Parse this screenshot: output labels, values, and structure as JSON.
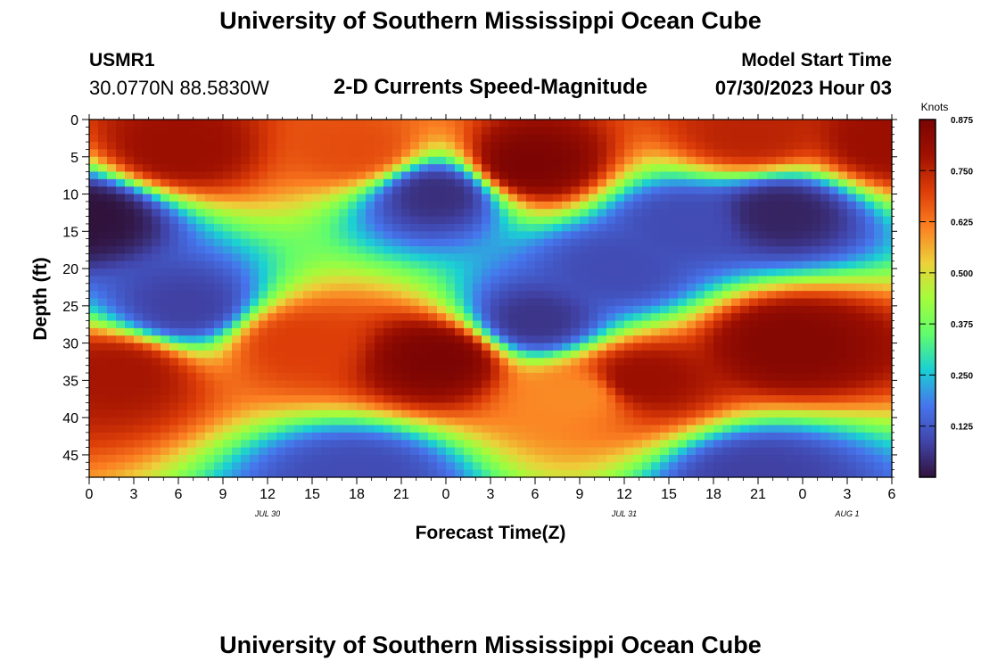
{
  "header": {
    "title": "University of Southern Mississippi Ocean Cube",
    "station": "USMR1",
    "coords": "30.0770N  88.5830W",
    "subtitle": "2-D Currents Speed-Magnitude",
    "model_start_label": "Model Start Time",
    "model_start_value": "07/30/2023 Hour 03"
  },
  "footer": {
    "title": "University of Southern Mississippi Ocean Cube"
  },
  "chart_data": {
    "type": "heatmap",
    "xlabel": "Forecast Time(Z)",
    "ylabel": "Depth (ft)",
    "x_tick_labels": [
      "0",
      "3",
      "6",
      "9",
      "12",
      "15",
      "18",
      "21",
      "0",
      "3",
      "6",
      "9",
      "12",
      "15",
      "18",
      "21",
      "0",
      "3",
      "6"
    ],
    "date_labels": [
      {
        "text": "JUL 30",
        "at_tick": 4
      },
      {
        "text": "JUL 31",
        "at_tick": 12
      },
      {
        "text": "AUG 1",
        "at_tick": 17
      }
    ],
    "y_ticks": [
      0,
      5,
      10,
      15,
      20,
      25,
      30,
      35,
      40,
      45
    ],
    "ylim": [
      0,
      48
    ],
    "xlim_hours": [
      0,
      54
    ],
    "colorbar": {
      "unit": "Knots",
      "ticks": [
        "0.875",
        "0.750",
        "0.625",
        "0.500",
        "0.375",
        "0.250",
        "0.125"
      ],
      "range": [
        0,
        0.875
      ]
    },
    "high_speed_regions": [
      {
        "hour": 6,
        "depth": 4,
        "speed": 0.8
      },
      {
        "hour": 18,
        "depth": 4,
        "speed": 0.68
      },
      {
        "hour": 29.5,
        "depth": 6,
        "speed": 0.87
      },
      {
        "hour": 44.5,
        "depth": 2,
        "speed": 0.75
      },
      {
        "hour": 53.8,
        "depth": 3,
        "speed": 0.8
      },
      {
        "hour": 2,
        "depth": 34,
        "speed": 0.78
      },
      {
        "hour": 23.5,
        "depth": 32,
        "speed": 0.87
      },
      {
        "hour": 14,
        "depth": 30,
        "speed": 0.7
      },
      {
        "hour": 37,
        "depth": 35,
        "speed": 0.8
      },
      {
        "hour": 47,
        "depth": 30,
        "speed": 0.85
      },
      {
        "hour": 33,
        "depth": 37,
        "speed": 0.6
      }
    ],
    "low_speed_regions": [
      {
        "hour": 0,
        "depth": 13,
        "speed": 0.0
      },
      {
        "hour": 23.5,
        "depth": 10,
        "speed": 0.05
      },
      {
        "hour": 6.5,
        "depth": 25,
        "speed": 0.08
      },
      {
        "hour": 30,
        "depth": 27,
        "speed": 0.06
      },
      {
        "hour": 35.5,
        "depth": 20,
        "speed": 0.1
      },
      {
        "hour": 40,
        "depth": 14,
        "speed": 0.1
      },
      {
        "hour": 46.5,
        "depth": 12.5,
        "speed": 0.03
      },
      {
        "hour": 18,
        "depth": 48,
        "speed": 0.1
      },
      {
        "hour": 45,
        "depth": 48,
        "speed": 0.08
      }
    ]
  }
}
